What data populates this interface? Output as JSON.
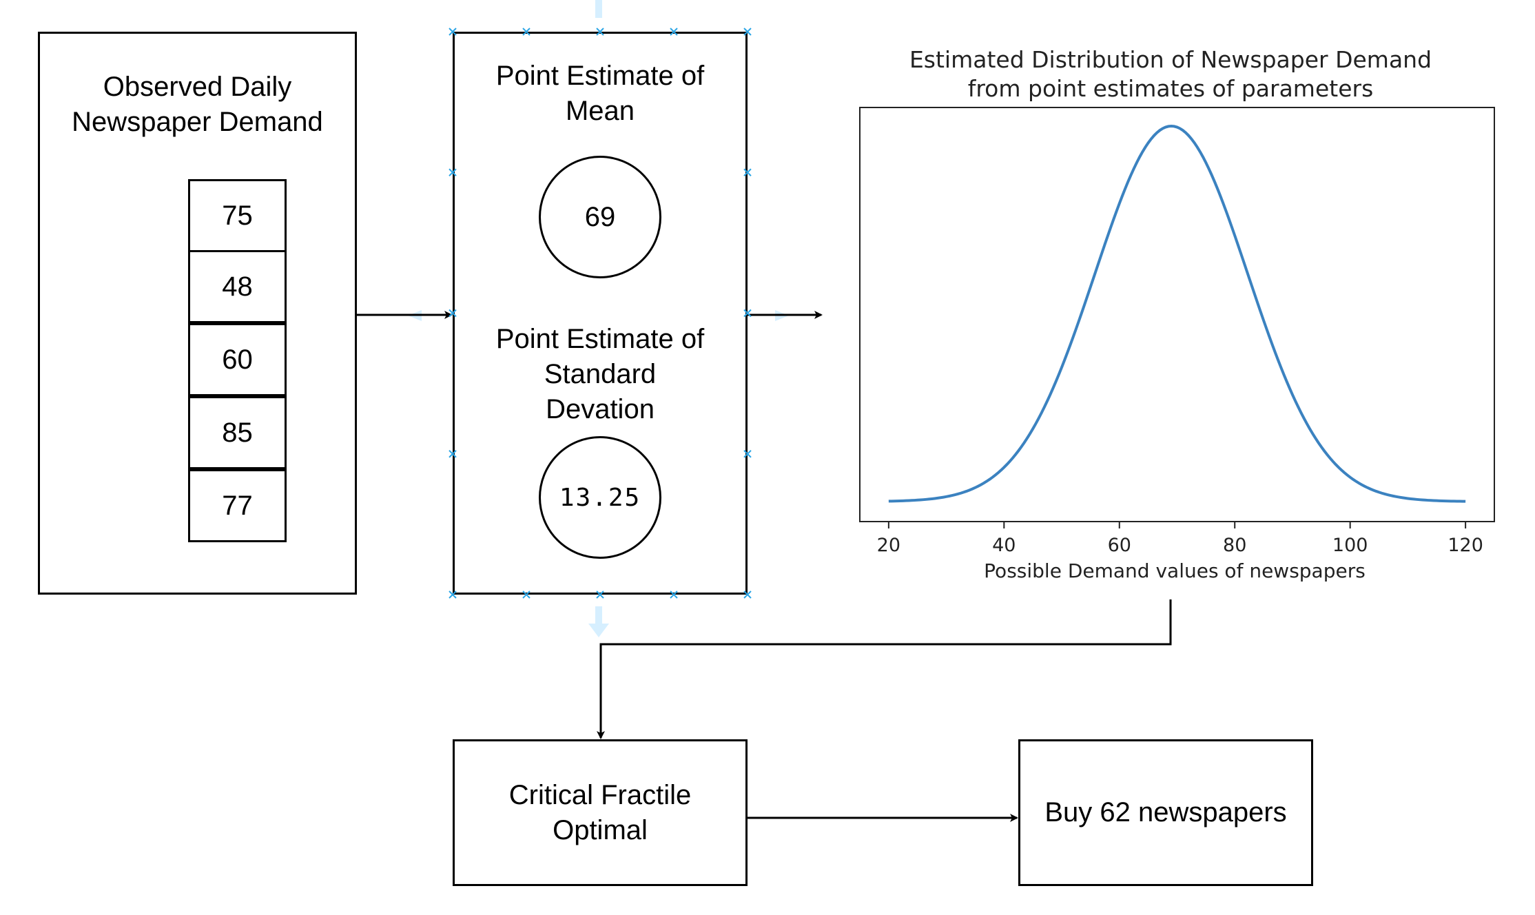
{
  "observed": {
    "title_line1": "Observed Daily",
    "title_line2": "Newspaper Demand",
    "values": [
      "75",
      "48",
      "60",
      "85",
      "77"
    ]
  },
  "estimates": {
    "mean_title_line1": "Point Estimate of",
    "mean_title_line2": "Mean",
    "mean_value": "69",
    "sd_title_line1": "Point Estimate of",
    "sd_title_line2": "Standard",
    "sd_title_line3": "Devation",
    "sd_value": "13.25"
  },
  "critical": {
    "line1": "Critical Fractile",
    "line2": "Optimal"
  },
  "result": {
    "label": "Buy 62 newspapers"
  },
  "colors": {
    "curve": "#3b82c0",
    "handle": "#2aa5e6",
    "ghost_arrow": "#d6efff"
  },
  "chart_data": {
    "type": "line",
    "title_line1": "Estimated Distribution of Newspaper Demand",
    "title_line2": "from point estimates of parameters",
    "xlabel": "Possible Demand values of newspapers",
    "ylabel": "",
    "xlim": [
      15,
      125
    ],
    "xticks": [
      "20",
      "40",
      "60",
      "80",
      "100",
      "120"
    ],
    "mean": 69,
    "sd": 13.25,
    "x_range": [
      20,
      120
    ],
    "grid": false,
    "legend": "none"
  }
}
